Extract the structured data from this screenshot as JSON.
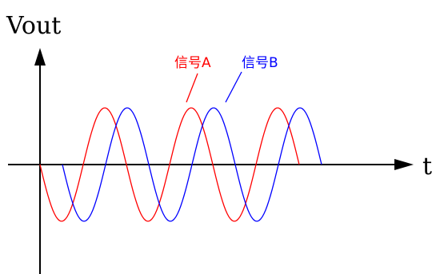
{
  "axes": {
    "y_label": "Vout",
    "x_label": "t"
  },
  "signals": [
    {
      "label": "信号A",
      "color": "#ff0000"
    },
    {
      "label": "信号B",
      "color": "#0000ff"
    }
  ]
}
